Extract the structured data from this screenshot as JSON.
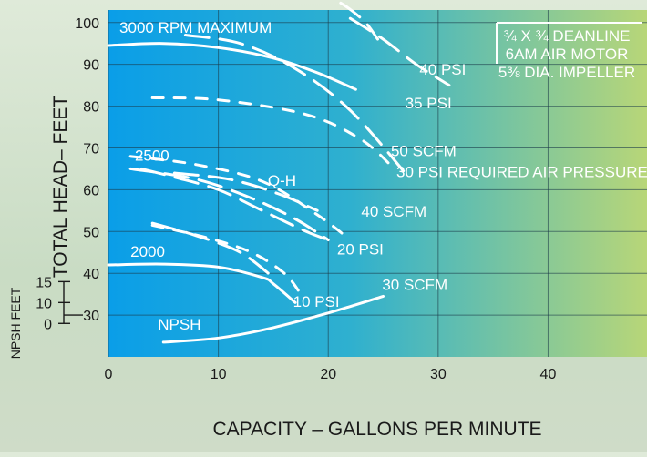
{
  "chart_data": {
    "type": "line",
    "xlabel": "CAPACITY – GALLONS PER MINUTE",
    "ylabel": "TOTAL HEAD– FEET",
    "npsh_axis_label": "NPSH FEET",
    "xlim": [
      0,
      49
    ],
    "ylim": [
      20,
      103
    ],
    "x_ticks": [
      0,
      10,
      20,
      30,
      40
    ],
    "y_ticks": [
      30,
      40,
      50,
      60,
      70,
      80,
      90,
      100
    ],
    "npsh_ticks": [
      {
        "label": "15",
        "y": 38
      },
      {
        "label": "10",
        "y": 33
      },
      {
        "label": "0",
        "y": 28
      }
    ],
    "colors": {
      "plot_left": "#0a9ee8",
      "plot_mid": "#2fb0cf",
      "plot_right": "#b8d678",
      "curve": "#ffffff",
      "text_dark": "#1a1a1a"
    },
    "info_box": [
      "¾ X ¾ DEANLINE",
      "6AM AIR MOTOR",
      "5⅜ DIA. IMPELLER"
    ],
    "series": [
      {
        "name": "3000 RPM MAXIMUM",
        "style": "solid",
        "x": [
          0,
          5,
          10,
          15,
          19,
          22.5
        ],
        "y": [
          94.5,
          95,
          94,
          91.5,
          88,
          84
        ]
      },
      {
        "name": "2500",
        "style": "dashed",
        "x": [
          3,
          6,
          10,
          14,
          18,
          20
        ],
        "y": [
          65,
          63,
          60,
          55,
          50,
          48
        ]
      },
      {
        "name": "2000",
        "style": "solid",
        "x": [
          0,
          5,
          10,
          14,
          15,
          17
        ],
        "y": [
          42,
          42.2,
          41.5,
          39,
          37.5,
          33
        ]
      },
      {
        "name": "NPSH",
        "style": "solid",
        "x": [
          5,
          10,
          15,
          20,
          25
        ],
        "y": [
          23.5,
          24.5,
          27,
          30.5,
          34.5
        ]
      },
      {
        "name": "40 PSI",
        "style": "dashed",
        "x": [
          15,
          20,
          23,
          24.5
        ],
        "y": [
          108,
          106,
          101,
          96
        ]
      },
      {
        "name": "35 PSI",
        "style": "dashed",
        "x": [
          22,
          25,
          28,
          31
        ],
        "y": [
          101,
          96,
          90,
          85
        ]
      },
      {
        "name": "50 SCFM",
        "style": "short-dash",
        "x": [
          4,
          10,
          18,
          23,
          26
        ],
        "y": [
          82,
          81.5,
          78,
          72,
          65
        ]
      },
      {
        "name": "30 PSI REQUIRED AIR PRESSURE",
        "style": "dashed",
        "x": [
          7,
          12,
          17,
          22,
          27
        ],
        "y": [
          97,
          95,
          89,
          79,
          64
        ]
      },
      {
        "name": "40 SCFM",
        "style": "short-dash",
        "x": [
          2,
          8,
          14,
          19,
          22
        ],
        "y": [
          68,
          66,
          62,
          54,
          48
        ]
      },
      {
        "name": "Q-H",
        "style": "dashed",
        "x": [
          6,
          11,
          15.5,
          19
        ],
        "y": [
          64,
          62.5,
          59,
          55
        ]
      },
      {
        "name": "20 PSI",
        "style": "dashed",
        "x": [
          2,
          8,
          13,
          17,
          20
        ],
        "y": [
          65,
          62.5,
          58,
          53,
          48
        ]
      },
      {
        "name": "30 SCFM",
        "style": "short-dash",
        "x": [
          4,
          9,
          13,
          16,
          17.5
        ],
        "y": [
          51.5,
          48.5,
          45,
          40,
          35
        ]
      },
      {
        "name": "10 PSI",
        "style": "dashed",
        "x": [
          4,
          8,
          12,
          15
        ],
        "y": [
          52,
          49,
          45,
          39
        ]
      }
    ],
    "labels": [
      {
        "text": "3000 RPM MAXIMUM",
        "x": 1,
        "y": 97.5
      },
      {
        "text": "2500",
        "x": 2.4,
        "y": 67
      },
      {
        "text": "2000",
        "x": 2,
        "y": 44
      },
      {
        "text": "NPSH",
        "x": 4.5,
        "y": 26.5
      },
      {
        "text": "Q-H",
        "x": 14.5,
        "y": 61
      },
      {
        "text": "40 PSI",
        "x": 28.3,
        "y": 87.5
      },
      {
        "text": "35 PSI",
        "x": 27,
        "y": 79.5
      },
      {
        "text": "50 SCFM",
        "x": 25.7,
        "y": 68
      },
      {
        "text": "30 PSI REQUIRED AIR PRESSURE",
        "x": 26.2,
        "y": 63
      },
      {
        "text": "40 SCFM",
        "x": 23,
        "y": 53.5
      },
      {
        "text": "20 PSI",
        "x": 20.8,
        "y": 44.5
      },
      {
        "text": "30 SCFM",
        "x": 24.9,
        "y": 36
      },
      {
        "text": "10 PSI",
        "x": 16.8,
        "y": 32
      }
    ]
  }
}
